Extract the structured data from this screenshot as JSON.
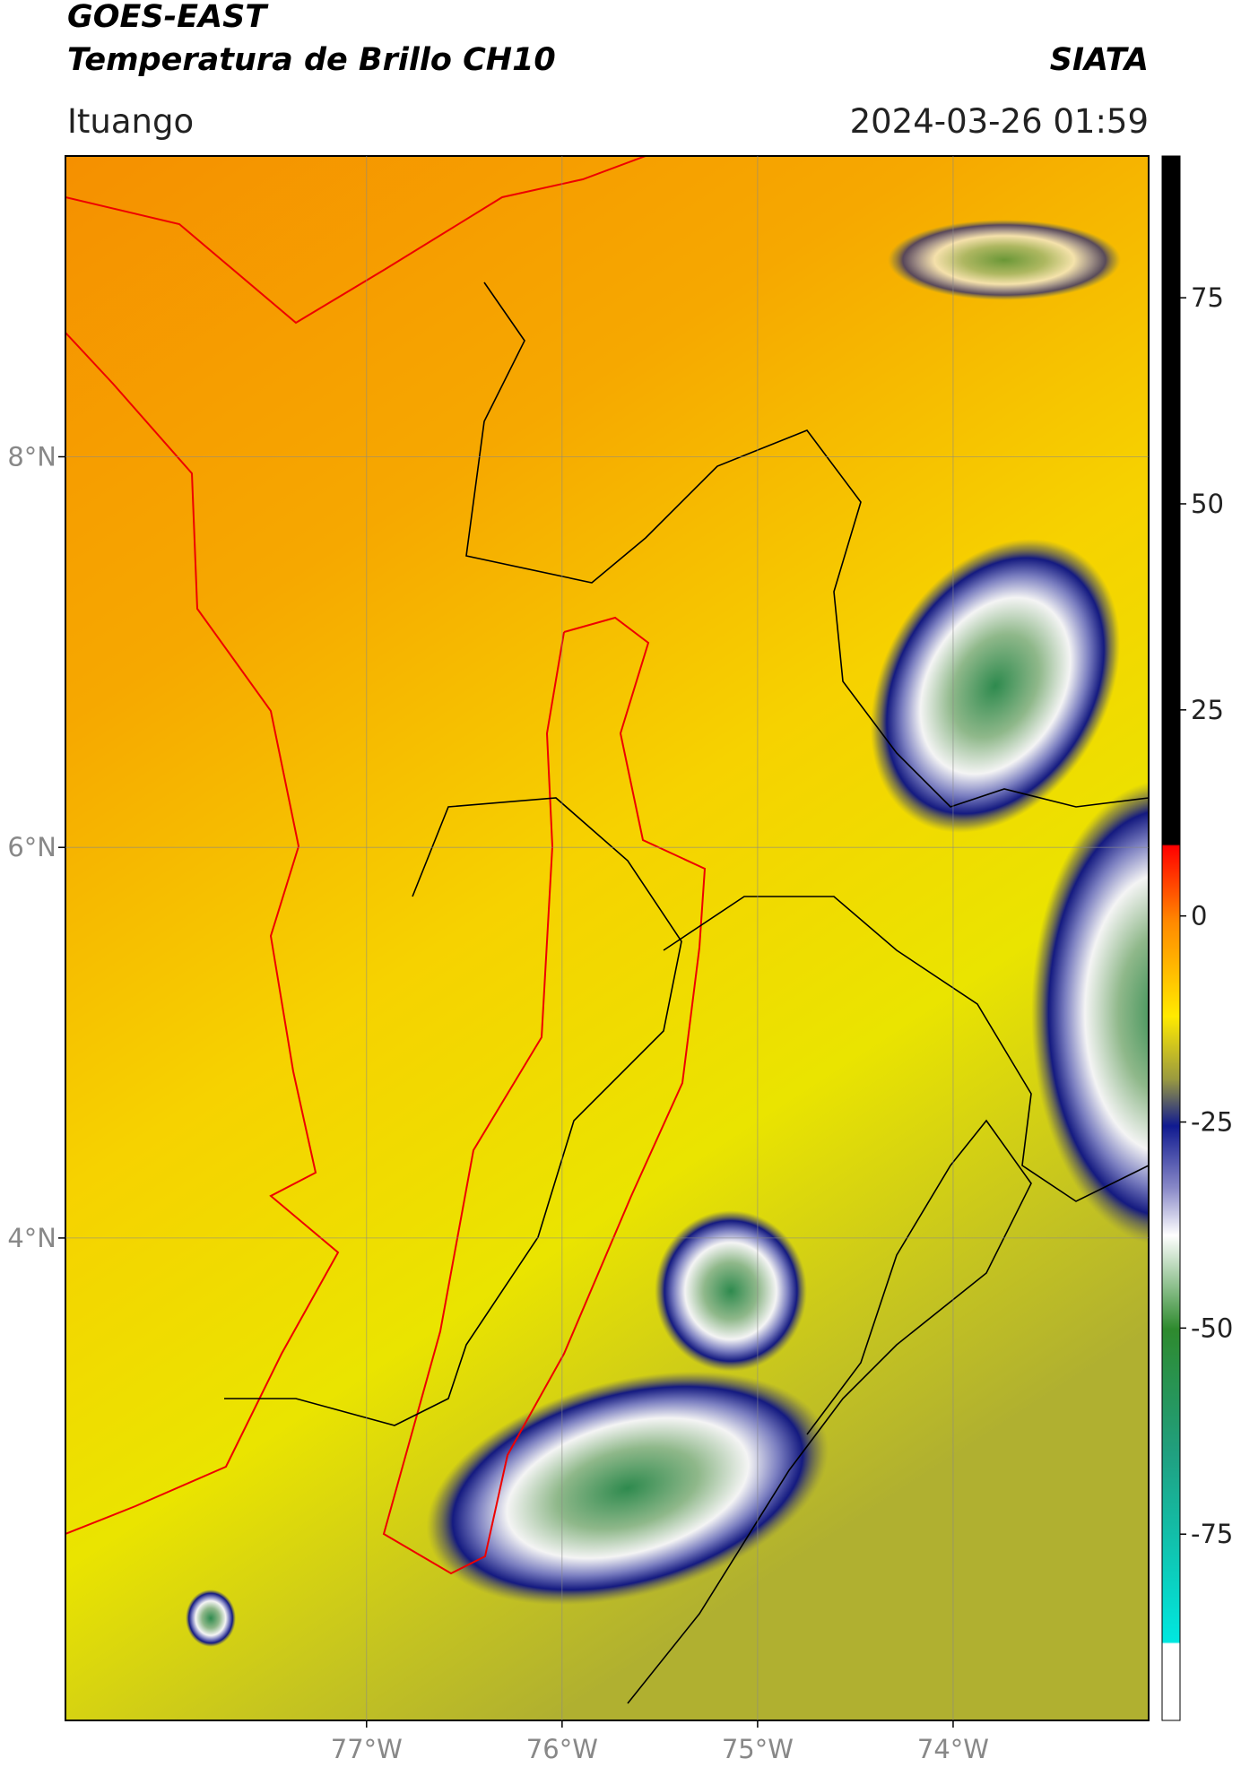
{
  "header": {
    "title": "GOES-EAST",
    "subtitle": "Temperatura de Brillo CH10",
    "agency": "SIATA",
    "location": "Ituango",
    "datetime": "2024-03-26 01:59"
  },
  "map": {
    "latlim": [
      1.53,
      9.54
    ],
    "lonlim": [
      -78.54,
      -73.0
    ],
    "latticks": [
      {
        "value": 8,
        "label": "8°N"
      },
      {
        "value": 6,
        "label": "6°N"
      },
      {
        "value": 4,
        "label": "4°N"
      }
    ],
    "lonticks": [
      {
        "value": -77,
        "label": "77°W"
      },
      {
        "value": -76,
        "label": "76°W"
      },
      {
        "value": -75,
        "label": "75°W"
      },
      {
        "value": -74,
        "label": "74°W"
      }
    ]
  },
  "colorbar": {
    "lim": [
      -97.6,
      92.2
    ],
    "ticks": [
      75,
      50,
      25,
      0,
      -25,
      -50,
      -75
    ]
  }
}
